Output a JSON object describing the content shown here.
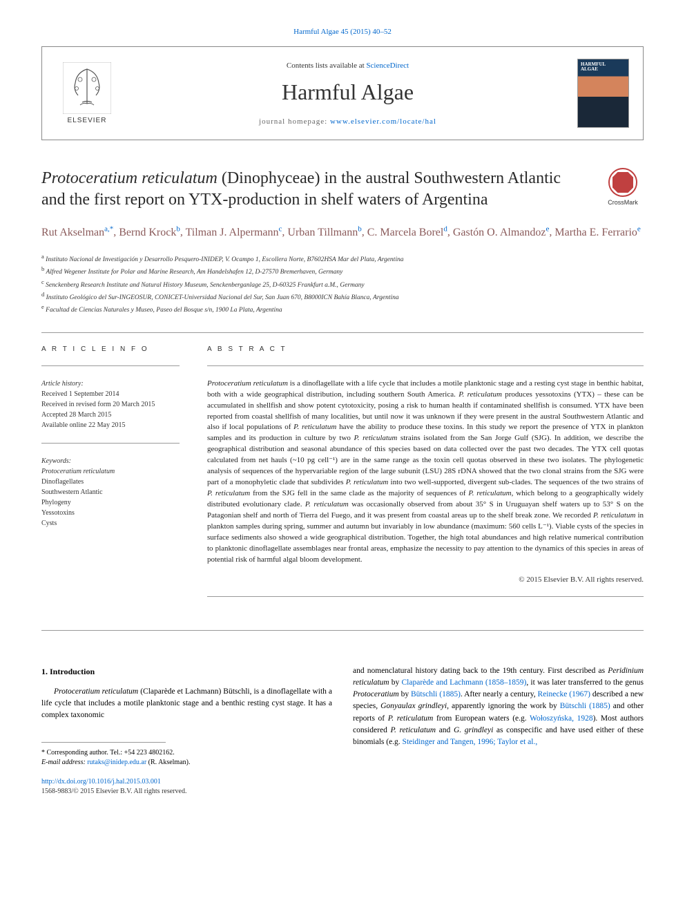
{
  "header": {
    "journal_ref": "Harmful Algae 45 (2015) 40–52",
    "contents_prefix": "Contents lists available at ",
    "contents_link": "ScienceDirect",
    "journal_name": "Harmful Algae",
    "homepage_prefix": "journal homepage: ",
    "homepage_url": "www.elsevier.com/locate/hal",
    "elsevier_label": "ELSEVIER",
    "cover_text1": "HARMFUL",
    "cover_text2": "ALGAE",
    "crossmark_label": "CrossMark"
  },
  "title": {
    "italic_part": "Protoceratium reticulatum",
    "rest": " (Dinophyceae) in the austral Southwestern Atlantic and the first report on YTX-production in shelf waters of Argentina"
  },
  "authors": [
    {
      "name": "Rut Akselman",
      "sup": "a,*"
    },
    {
      "name": "Bernd Krock",
      "sup": "b"
    },
    {
      "name": "Tilman J. Alpermann",
      "sup": "c"
    },
    {
      "name": "Urban Tillmann",
      "sup": "b"
    },
    {
      "name": "C. Marcela Borel",
      "sup": "d"
    },
    {
      "name": "Gastón O. Almandoz",
      "sup": "e"
    },
    {
      "name": "Martha E. Ferrario",
      "sup": "e"
    }
  ],
  "affiliations": [
    {
      "sup": "a",
      "text": "Instituto Nacional de Investigación y Desarrollo Pesquero-INIDEP, V. Ocampo 1, Escollera Norte, B7602HSA Mar del Plata, Argentina"
    },
    {
      "sup": "b",
      "text": "Alfred Wegener Institute for Polar and Marine Research, Am Handelshafen 12, D-27570 Bremerhaven, Germany"
    },
    {
      "sup": "c",
      "text": "Senckenberg Research Institute and Natural History Museum, Senckenberganlage 25, D-60325 Frankfurt a.M., Germany"
    },
    {
      "sup": "d",
      "text": "Instituto Geológico del Sur-INGEOSUR, CONICET-Universidad Nacional del Sur, San Juan 670, B8000ICN Bahía Blanca, Argentina"
    },
    {
      "sup": "e",
      "text": "Facultad de Ciencias Naturales y Museo, Paseo del Bosque s/n, 1900 La Plata, Argentina"
    }
  ],
  "article_info": {
    "label": "A R T I C L E  I N F O",
    "history_label": "Article history:",
    "history": [
      "Received 1 September 2014",
      "Received in revised form 20 March 2015",
      "Accepted 28 March 2015",
      "Available online 22 May 2015"
    ],
    "keywords_label": "Keywords:",
    "keywords": [
      {
        "text": "Protoceratium reticulatum",
        "italic": true
      },
      {
        "text": "Dinoflagellates",
        "italic": false
      },
      {
        "text": "Southwestern Atlantic",
        "italic": false
      },
      {
        "text": "Phylogeny",
        "italic": false
      },
      {
        "text": "Yessotoxins",
        "italic": false
      },
      {
        "text": "Cysts",
        "italic": false
      }
    ]
  },
  "abstract": {
    "label": "A B S T R A C T",
    "text_parts": [
      {
        "t": "Protoceratium reticulatum",
        "i": true
      },
      {
        "t": " is a dinoflagellate with a life cycle that includes a motile planktonic stage and a resting cyst stage in benthic habitat, both with a wide geographical distribution, including southern South America. ",
        "i": false
      },
      {
        "t": "P. reticulatum",
        "i": true
      },
      {
        "t": " produces yessotoxins (YTX) – these can be accumulated in shellfish and show potent cytotoxicity, posing a risk to human health if contaminated shellfish is consumed. YTX have been reported from coastal shellfish of many localities, but until now it was unknown if they were present in the austral Southwestern Atlantic and also if local populations of ",
        "i": false
      },
      {
        "t": "P. reticulatum",
        "i": true
      },
      {
        "t": " have the ability to produce these toxins. In this study we report the presence of YTX in plankton samples and its production in culture by two ",
        "i": false
      },
      {
        "t": "P. reticulatum",
        "i": true
      },
      {
        "t": " strains isolated from the San Jorge Gulf (SJG). In addition, we describe the geographical distribution and seasonal abundance of this species based on data collected over the past two decades. The YTX cell quotas calculated from net hauls (~10 pg cell⁻¹) are in the same range as the toxin cell quotas observed in these two isolates. The phylogenetic analysis of sequences of the hypervariable region of the large subunit (LSU) 28S rDNA showed that the two clonal strains from the SJG were part of a monophyletic clade that subdivides ",
        "i": false
      },
      {
        "t": "P. reticulatum",
        "i": true
      },
      {
        "t": " into two well-supported, divergent sub-clades. The sequences of the two strains of ",
        "i": false
      },
      {
        "t": "P. reticulatum",
        "i": true
      },
      {
        "t": " from the SJG fell in the same clade as the majority of sequences of ",
        "i": false
      },
      {
        "t": "P. reticulatum",
        "i": true
      },
      {
        "t": ", which belong to a geographically widely distributed evolutionary clade. ",
        "i": false
      },
      {
        "t": "P. reticulatum",
        "i": true
      },
      {
        "t": " was occasionally observed from about 35° S in Uruguayan shelf waters up to 53° S on the Patagonian shelf and north of Tierra del Fuego, and it was present from coastal areas up to the shelf break zone. We recorded ",
        "i": false
      },
      {
        "t": "P. reticulatum",
        "i": true
      },
      {
        "t": " in plankton samples during spring, summer and autumn but invariably in low abundance (maximum: 560 cells L⁻¹). Viable cysts of the species in surface sediments also showed a wide geographical distribution. Together, the high total abundances and high relative numerical contribution to planktonic dinoflagellate assemblages near frontal areas, emphasize the necessity to pay attention to the dynamics of this species in areas of potential risk of harmful algal bloom development.",
        "i": false
      }
    ],
    "copyright": "© 2015 Elsevier B.V. All rights reserved."
  },
  "body": {
    "section_heading": "1. Introduction",
    "left_para_parts": [
      {
        "t": "Protoceratium reticulatum",
        "i": true
      },
      {
        "t": " (Claparède et Lachmann) Bütschli, is a dinoflagellate with a life cycle that includes a motile planktonic stage and a benthic resting cyst stage. It has a complex taxonomic",
        "i": false
      }
    ],
    "right_para_parts": [
      {
        "t": "and nomenclatural history dating back to the 19th century. First described as ",
        "i": false
      },
      {
        "t": "Peridinium reticulatum",
        "i": true
      },
      {
        "t": " by ",
        "i": false
      },
      {
        "t": "Claparède and Lachmann (1858–1859)",
        "link": true
      },
      {
        "t": ", it was later transferred to the genus ",
        "i": false
      },
      {
        "t": "Protoceratium",
        "i": true
      },
      {
        "t": " by ",
        "i": false
      },
      {
        "t": "Bütschli (1885)",
        "link": true
      },
      {
        "t": ". After nearly a century, ",
        "i": false
      },
      {
        "t": "Reinecke (1967)",
        "link": true
      },
      {
        "t": " described a new species, ",
        "i": false
      },
      {
        "t": "Gonyaulax grindleyi",
        "i": true
      },
      {
        "t": ", apparently ignoring the work by ",
        "i": false
      },
      {
        "t": "Bütschli (1885)",
        "link": true
      },
      {
        "t": " and other reports of ",
        "i": false
      },
      {
        "t": "P. reticulatum",
        "i": true
      },
      {
        "t": " from European waters (e.g. ",
        "i": false
      },
      {
        "t": "Wołoszyńska, 1928",
        "link": true
      },
      {
        "t": "). Most authors considered ",
        "i": false
      },
      {
        "t": "P. reticulatum",
        "i": true
      },
      {
        "t": " and ",
        "i": false
      },
      {
        "t": "G. grindleyi",
        "i": true
      },
      {
        "t": " as conspecific and have used either of these binomials (e.g. ",
        "i": false
      },
      {
        "t": "Steidinger and Tangen, 1996; Taylor et al.,",
        "link": true
      }
    ]
  },
  "footnote": {
    "corresponding": "* Corresponding author. Tel.: +54 223 4802162.",
    "email_label": "E-mail address: ",
    "email": "rutaks@inidep.edu.ar",
    "email_suffix": " (R. Akselman)."
  },
  "doi": {
    "url": "http://dx.doi.org/10.1016/j.hal.2015.03.001",
    "issn_line": "1568-9883/© 2015 Elsevier B.V. All rights reserved."
  },
  "colors": {
    "link": "#0066cc",
    "author": "#8a5a5a",
    "crossmark": "#c04040"
  }
}
